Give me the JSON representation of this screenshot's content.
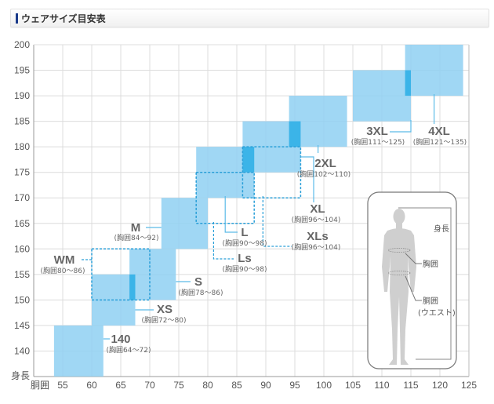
{
  "header": {
    "title": "ウェアサイズ目安表",
    "accent": "#1a3a8a"
  },
  "chart_data": {
    "type": "table",
    "title": "ウェアサイズ目安表",
    "xlabel": "胴囲",
    "ylabel": "身長",
    "xlim": [
      50,
      125
    ],
    "ylim": [
      135,
      200
    ],
    "x_ticks": [
      55,
      60,
      65,
      70,
      75,
      80,
      85,
      90,
      95,
      100,
      105,
      110,
      115,
      120,
      125
    ],
    "y_ticks": [
      140,
      145,
      150,
      155,
      160,
      165,
      170,
      175,
      180,
      185,
      190,
      195,
      200
    ],
    "y_tick_bottom_label": "身長",
    "x_tick_left_label": "胴囲",
    "grid": true,
    "fill_color": "#8fd0f2",
    "overlap_color": "#3bb4e8",
    "dashed_color": "#2a9fd8",
    "sizes": [
      {
        "name": "140",
        "chest": "(胸囲64〜72)",
        "waist": [
          53.5,
          62
        ],
        "height": [
          135,
          145
        ],
        "style": "solid"
      },
      {
        "name": "XS",
        "chest": "(胸囲72〜80)",
        "waist": [
          60,
          67.5
        ],
        "height": [
          145,
          155
        ],
        "style": "solid"
      },
      {
        "name": "S",
        "chest": "(胸囲78〜86)",
        "waist": [
          66.5,
          74.5
        ],
        "height": [
          150,
          160
        ],
        "style": "solid"
      },
      {
        "name": "M",
        "chest": "(胸囲84〜92)",
        "waist": [
          72,
          80
        ],
        "height": [
          160,
          170
        ],
        "style": "solid"
      },
      {
        "name": "L",
        "chest": "(胸囲90〜98)",
        "waist": [
          78,
          88
        ],
        "height": [
          170,
          180
        ],
        "style": "solid"
      },
      {
        "name": "XL",
        "chest": "(胸囲96〜104)",
        "waist": [
          86,
          96
        ],
        "height": [
          175,
          185
        ],
        "style": "solid"
      },
      {
        "name": "2XL",
        "chest": "(胸囲102〜110)",
        "waist": [
          94,
          104
        ],
        "height": [
          180,
          190
        ],
        "style": "solid"
      },
      {
        "name": "3XL",
        "chest": "(胸囲111〜125)",
        "waist": [
          105,
          115
        ],
        "height": [
          185,
          195
        ],
        "style": "solid"
      },
      {
        "name": "4XL",
        "chest": "(胸囲121〜135)",
        "waist": [
          114,
          124
        ],
        "height": [
          190,
          200
        ],
        "style": "solid"
      },
      {
        "name": "WM",
        "chest": "(胸囲80〜86)",
        "waist": [
          60,
          70
        ],
        "height": [
          150,
          160
        ],
        "style": "dashed"
      },
      {
        "name": "Ls",
        "chest": "(胸囲90〜98)",
        "waist": [
          78,
          88
        ],
        "height": [
          165,
          175
        ],
        "style": "dashed"
      },
      {
        "name": "XLs",
        "chest": "(胸囲96〜104)",
        "waist": [
          86,
          96
        ],
        "height": [
          170,
          180
        ],
        "style": "dashed"
      }
    ]
  },
  "legend": {
    "height_label": "身長",
    "chest_label": "胸囲",
    "waist_label": "胴囲",
    "waist_sub_label": "(ウエスト)"
  }
}
